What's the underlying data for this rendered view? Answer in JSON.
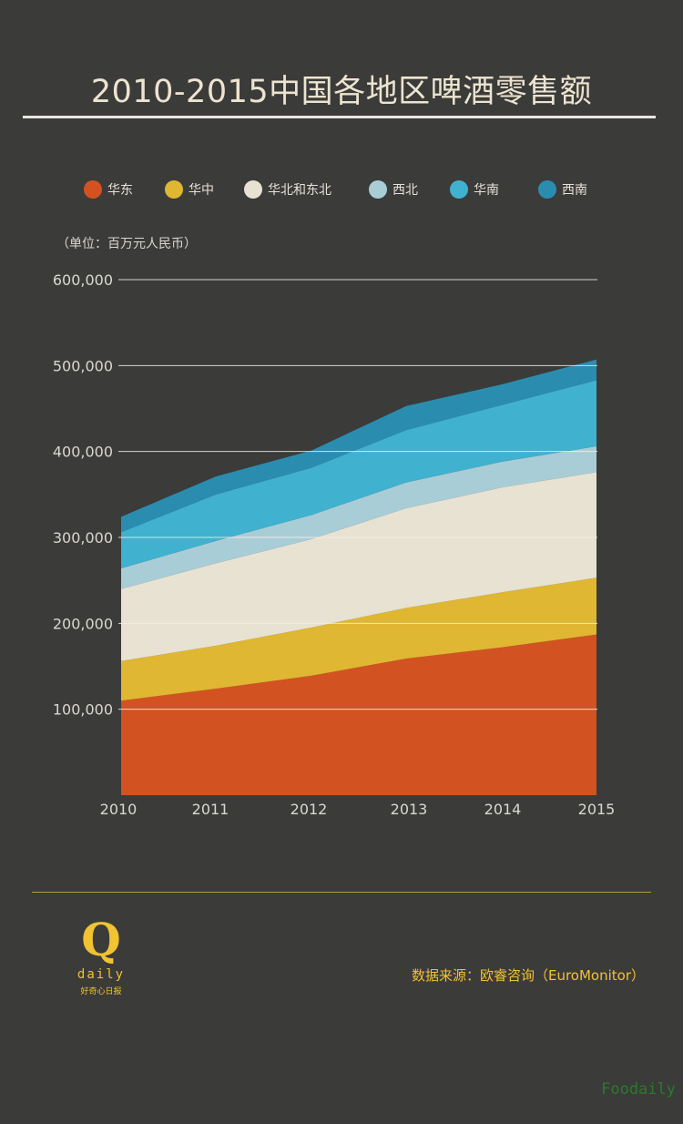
{
  "title": "2010-2015中国各地区啤酒零售额",
  "unit_note": "（单位：百万元人民币）",
  "source": "数据来源：欧睿咨询（EuroMonitor）",
  "logo": {
    "mark": "Q",
    "word": "daily",
    "cn": "好奇心日报"
  },
  "watermark": "Foodaily",
  "colors": {
    "background": "#3b3b3a",
    "huadong": "#d25321",
    "huazhong": "#dfb732",
    "huabei_dongbei": "#e8e2d2",
    "xibei": "#a9cdd6",
    "huanan": "#40b1cf",
    "xinan": "#2a8db0",
    "accent": "#f1c232"
  },
  "chart_data": {
    "type": "area",
    "stacked": true,
    "title": "2010-2015中国各地区啤酒零售额",
    "ylabel": "（单位：百万元人民币）",
    "x": [
      "2010",
      "2011",
      "2012",
      "2013",
      "2014",
      "2015"
    ],
    "ylim": [
      0,
      600000
    ],
    "yticks": [
      100000,
      200000,
      300000,
      400000,
      500000,
      600000
    ],
    "ytick_labels": [
      "100,000",
      "200,000",
      "300,000",
      "400,000",
      "500,000",
      "600,000"
    ],
    "grid": true,
    "legend_position": "top",
    "series": [
      {
        "name": "华东",
        "color": "#d25321",
        "values": [
          110000,
          124000,
          139000,
          159000,
          172000,
          187000
        ]
      },
      {
        "name": "华中",
        "color": "#dfb732",
        "values": [
          46000,
          50000,
          56000,
          59000,
          64000,
          66000
        ]
      },
      {
        "name": "华北和东北",
        "color": "#e8e2d2",
        "values": [
          84000,
          96000,
          103000,
          116000,
          122000,
          123000
        ]
      },
      {
        "name": "西北",
        "color": "#a9cdd6",
        "values": [
          24000,
          26000,
          28000,
          30000,
          30000,
          30000
        ]
      },
      {
        "name": "华南",
        "color": "#40b1cf",
        "values": [
          42000,
          54000,
          55000,
          61000,
          66000,
          77000
        ]
      },
      {
        "name": "西南",
        "color": "#2a8db0",
        "values": [
          18000,
          21000,
          20000,
          28000,
          24000,
          24000
        ]
      }
    ]
  }
}
